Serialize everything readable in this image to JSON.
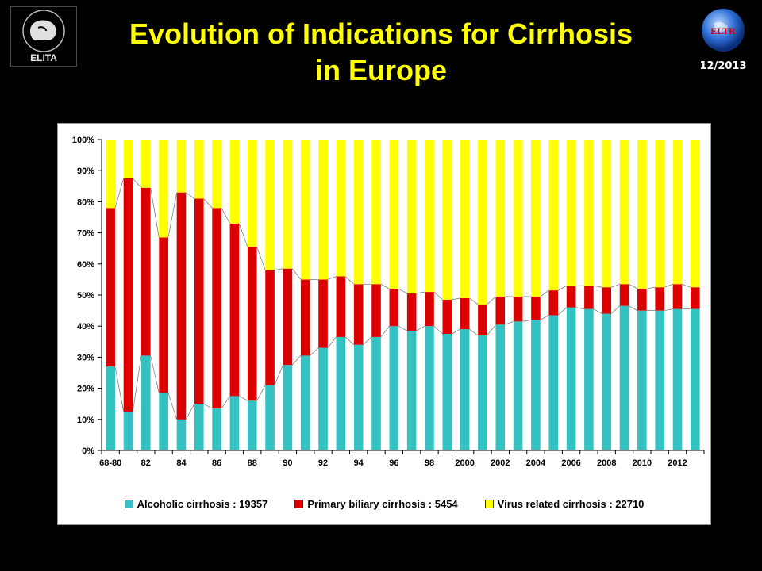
{
  "header": {
    "title_line1": "Evolution of Indications for Cirrhosis",
    "title_line2": "in Europe",
    "date": "12/2013",
    "left_logo_text": "ELITA",
    "right_logo_text": "ELTR"
  },
  "colors": {
    "title": "#ffff00",
    "background": "#000000",
    "alcoholic": "#33c1c1",
    "pbc": "#dd0000",
    "virus": "#ffff00"
  },
  "chart_data": {
    "type": "bar",
    "stacked": true,
    "percent": true,
    "categories": [
      "68-80",
      "81",
      "82",
      "83",
      "84",
      "85",
      "86",
      "87",
      "88",
      "89",
      "90",
      "91",
      "92",
      "93",
      "94",
      "95",
      "96",
      "97",
      "98",
      "99",
      "2000",
      "2001",
      "2002",
      "2003",
      "2004",
      "2005",
      "2006",
      "2007",
      "2008",
      "2009",
      "2010",
      "2011",
      "2012",
      "2013"
    ],
    "tick_labels": [
      "68-80",
      "82",
      "84",
      "86",
      "88",
      "90",
      "92",
      "94",
      "96",
      "98",
      "2000",
      "2002",
      "2004",
      "2006",
      "2008",
      "2010",
      "2012"
    ],
    "y_tick_labels": [
      "0%",
      "10%",
      "20%",
      "30%",
      "40%",
      "50%",
      "60%",
      "70%",
      "80%",
      "90%",
      "100%"
    ],
    "ylim": [
      0,
      100
    ],
    "series": [
      {
        "name": "Alcoholic cirrhosis : 19357",
        "values": [
          27,
          12.5,
          30.5,
          18.5,
          10,
          15,
          13.5,
          17.5,
          16,
          21,
          27.5,
          30.5,
          33,
          36.5,
          34,
          36.5,
          40,
          38.5,
          40,
          37.5,
          39,
          37,
          40.5,
          41.5,
          42,
          43.5,
          46,
          45.5,
          44,
          46.5,
          45,
          45,
          45.5,
          45.5
        ]
      },
      {
        "name": "Primary biliary cirrhosis : 5454",
        "values": [
          51,
          75,
          54,
          50,
          73,
          66,
          64.5,
          55.5,
          49.5,
          37,
          31,
          24.5,
          22,
          19.5,
          19.5,
          17,
          12,
          12,
          11,
          11,
          10,
          10,
          9,
          8,
          7.5,
          8,
          7,
          7.5,
          8.5,
          7,
          7,
          7.5,
          8,
          7
        ]
      },
      {
        "name": "Virus related cirrhosis : 22710",
        "values": [
          22,
          12.5,
          15.5,
          31.5,
          17,
          19,
          22,
          27,
          34.5,
          42,
          41.5,
          45,
          45,
          44,
          46.5,
          46.5,
          48,
          49.5,
          49,
          51.5,
          51,
          53,
          50.5,
          50.5,
          50.5,
          48.5,
          47,
          47,
          47.5,
          46.5,
          48,
          47.5,
          46.5,
          47.5
        ]
      }
    ],
    "legend_position": "bottom",
    "grid": false,
    "title": "",
    "xlabel": "",
    "ylabel": ""
  }
}
